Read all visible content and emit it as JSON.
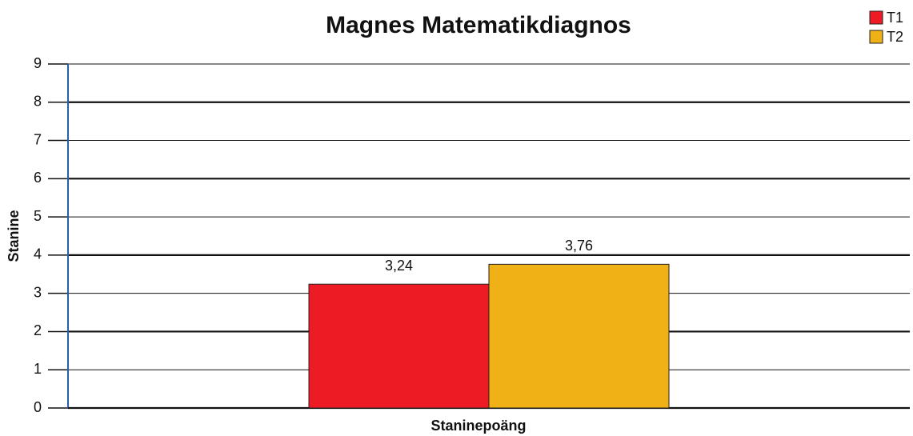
{
  "chart_data": {
    "type": "bar",
    "title": "Magnes Matematikdiagnos",
    "x_label": "Staninepoäng",
    "y_label": "Stanine",
    "categories": [
      null
    ],
    "series": [
      {
        "name": "T1",
        "color": "#ed1c24",
        "values": [
          3.24
        ],
        "value_labels": [
          "3,24"
        ]
      },
      {
        "name": "T2",
        "color": "#efb116",
        "values": [
          3.76
        ],
        "value_labels": [
          "3,76"
        ]
      }
    ],
    "ylim": [
      0,
      9
    ],
    "yticks": [
      0,
      1,
      2,
      3,
      4,
      5,
      6,
      7,
      8,
      9
    ],
    "grid": true,
    "legend": "top-right"
  }
}
